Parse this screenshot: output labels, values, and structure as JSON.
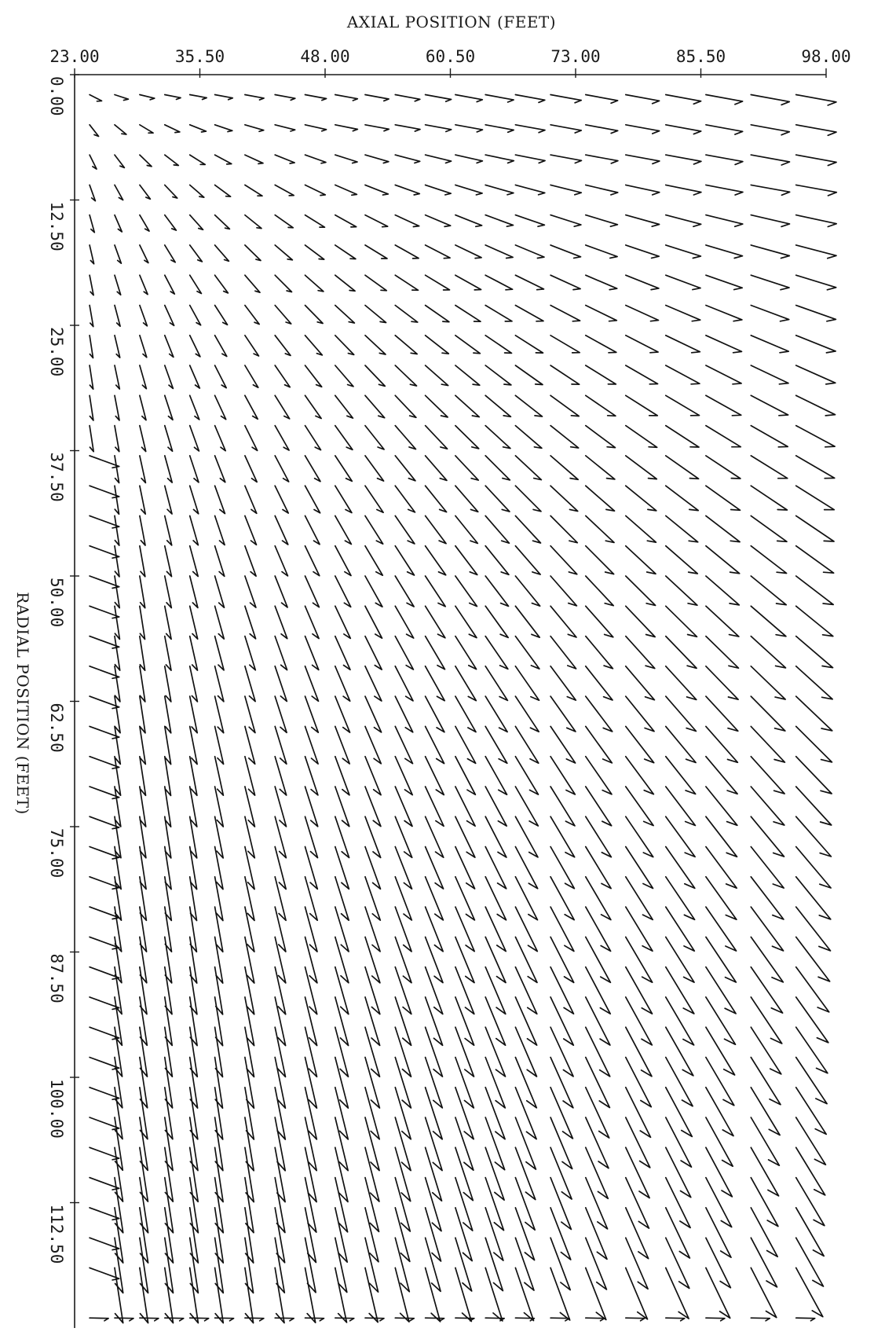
{
  "chart_data": {
    "type": "vector-field",
    "xlabel": "AXIAL POSITION (FEET)",
    "ylabel": "RADIAL POSITION (FEET)",
    "xlim": [
      23.0,
      98.0
    ],
    "ylim": [
      0.0,
      125.0
    ],
    "x_ticks": [
      "23.00",
      "35.50",
      "48.00",
      "60.50",
      "73.00",
      "85.50",
      "98.00"
    ],
    "y_ticks": [
      "0.00",
      "12.50",
      "25.00",
      "37.50",
      "50.00",
      "62.50",
      "75.00",
      "87.50",
      "100.00",
      "112.50"
    ],
    "x_tick_values": [
      23.0,
      35.5,
      48.0,
      60.5,
      73.0,
      85.5,
      98.0
    ],
    "y_tick_values": [
      0.0,
      12.5,
      25.0,
      37.5,
      50.0,
      62.5,
      75.0,
      87.5,
      100.0,
      112.5
    ],
    "y_axis_inverted": true,
    "grid": false,
    "field_description": "Velocity vectors on a non-uniform axial/radial grid, pointing down-and-right, steepening with radial distance; dense clustering near the origin",
    "sample_rows_radial": [
      2,
      5,
      8,
      11,
      14,
      17,
      20,
      23,
      26,
      29,
      32,
      35,
      38,
      41,
      44,
      47,
      50,
      53,
      56,
      59,
      62,
      65,
      68,
      71,
      74,
      77,
      80,
      83,
      86,
      89,
      92,
      95,
      98,
      101,
      104,
      107,
      110,
      113,
      116,
      119,
      124
    ],
    "sample_cols_axial": [
      24.5,
      27,
      29.5,
      32,
      34.5,
      37,
      40,
      43,
      46,
      49,
      52,
      55,
      58,
      61,
      64,
      67,
      70.5,
      74,
      78,
      82,
      86,
      90.5,
      95
    ]
  }
}
